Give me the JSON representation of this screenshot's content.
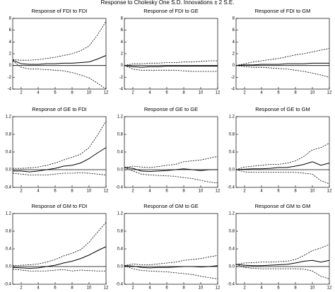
{
  "title": "Response to Cholesky One S.D. Innovations ± 2 S.E.",
  "chart_data": [
    {
      "type": "line",
      "title": "Response of FDI to FDI",
      "x": [
        1,
        2,
        3,
        4,
        5,
        6,
        7,
        8,
        9,
        10,
        11,
        12
      ],
      "xlim": [
        1,
        12
      ],
      "xticks": [
        2,
        4,
        6,
        8,
        10,
        12
      ],
      "ylim": [
        -4,
        8
      ],
      "yticks": [
        -4,
        -2,
        0,
        2,
        4,
        6,
        8
      ],
      "series": [
        {
          "color": "#000",
          "dash": false,
          "values": [
            0.9,
            0.3,
            0.2,
            0.2,
            0.3,
            0.3,
            0.4,
            0.4,
            0.5,
            0.6,
            1.1,
            1.7
          ]
        },
        {
          "color": "#000",
          "dash": true,
          "values": [
            1.0,
            0.9,
            0.9,
            1.0,
            1.2,
            1.4,
            1.7,
            2.0,
            2.5,
            3.3,
            5.2,
            7.5
          ]
        },
        {
          "color": "#000",
          "dash": true,
          "values": [
            0.8,
            -0.3,
            -0.6,
            -0.6,
            -0.7,
            -0.8,
            -0.9,
            -1.2,
            -1.6,
            -2.1,
            -3.0,
            -4.0
          ]
        }
      ]
    },
    {
      "type": "line",
      "title": "Response of FDI to GE",
      "x": [
        1,
        2,
        3,
        4,
        5,
        6,
        7,
        8,
        9,
        10,
        11,
        12
      ],
      "xlim": [
        1,
        12
      ],
      "xticks": [
        2,
        4,
        6,
        8,
        10,
        12
      ],
      "ylim": [
        -4,
        8
      ],
      "yticks": [
        -4,
        -2,
        0,
        2,
        4,
        6,
        8
      ],
      "series": [
        {
          "color": "#000",
          "dash": false,
          "values": [
            0,
            -0.2,
            -0.3,
            -0.2,
            -0.2,
            -0.1,
            -0.1,
            -0.1,
            -0.1,
            -0.1,
            -0.1,
            -0.1
          ]
        },
        {
          "color": "#000",
          "dash": true,
          "values": [
            0,
            0.3,
            0.3,
            0.4,
            0.4,
            0.5,
            0.5,
            0.6,
            0.6,
            0.7,
            0.8,
            0.8
          ]
        },
        {
          "color": "#000",
          "dash": true,
          "values": [
            0,
            -0.6,
            -0.8,
            -0.8,
            -0.8,
            -0.8,
            -0.8,
            -0.9,
            -1.0,
            -1.0,
            -1.0,
            -1.0
          ]
        }
      ]
    },
    {
      "type": "line",
      "title": "Response of FDI to GM",
      "x": [
        1,
        2,
        3,
        4,
        5,
        6,
        7,
        8,
        9,
        10,
        11,
        12
      ],
      "xlim": [
        1,
        12
      ],
      "xticks": [
        2,
        4,
        6,
        8,
        10,
        12
      ],
      "ylim": [
        -4,
        8
      ],
      "yticks": [
        -4,
        -2,
        0,
        2,
        4,
        6,
        8
      ],
      "series": [
        {
          "color": "#000",
          "dash": false,
          "values": [
            0,
            0.1,
            0.1,
            0.2,
            0.2,
            0.2,
            0.3,
            0.3,
            0.3,
            0.4,
            0.4,
            0.4
          ]
        },
        {
          "color": "#000",
          "dash": true,
          "values": [
            0,
            0.3,
            0.6,
            0.8,
            1.0,
            1.2,
            1.5,
            1.8,
            2.0,
            2.3,
            2.6,
            2.9
          ]
        },
        {
          "color": "#000",
          "dash": true,
          "values": [
            0,
            -0.2,
            -0.3,
            -0.3,
            -0.4,
            -0.5,
            -0.6,
            -0.8,
            -1.0,
            -1.3,
            -1.6,
            -2.0
          ]
        }
      ]
    },
    {
      "type": "line",
      "title": "Response of GE to FDI",
      "x": [
        1,
        2,
        3,
        4,
        5,
        6,
        7,
        8,
        9,
        10,
        11,
        12
      ],
      "xlim": [
        1,
        12
      ],
      "xticks": [
        2,
        4,
        6,
        8,
        10,
        12
      ],
      "ylim": [
        -0.4,
        1.2
      ],
      "yticks": [
        -0.4,
        {
          "value": 0,
          "label": "0.0"
        },
        0.4,
        0.8,
        1.2
      ],
      "series": [
        {
          "color": "#000",
          "dash": false,
          "values": [
            -0.03,
            -0.03,
            -0.05,
            -0.03,
            0,
            0.03,
            0.08,
            0.1,
            0.15,
            0.25,
            0.38,
            0.5
          ]
        },
        {
          "color": "#000",
          "dash": true,
          "values": [
            0.03,
            0.03,
            0.04,
            0.06,
            0.1,
            0.15,
            0.22,
            0.28,
            0.35,
            0.5,
            0.78,
            1.1
          ]
        },
        {
          "color": "#000",
          "dash": true,
          "values": [
            -0.08,
            -0.1,
            -0.12,
            -0.12,
            -0.12,
            -0.1,
            -0.08,
            -0.08,
            -0.07,
            -0.08,
            -0.1,
            -0.12
          ]
        }
      ]
    },
    {
      "type": "line",
      "title": "Response of GE to GE",
      "x": [
        1,
        2,
        3,
        4,
        5,
        6,
        7,
        8,
        9,
        10,
        11,
        12
      ],
      "xlim": [
        1,
        12
      ],
      "xticks": [
        2,
        4,
        6,
        8,
        10,
        12
      ],
      "ylim": [
        -0.4,
        1.2
      ],
      "yticks": [
        -0.4,
        {
          "value": 0,
          "label": "0.0"
        },
        0.4,
        0.8,
        1.2
      ],
      "series": [
        {
          "color": "#000",
          "dash": false,
          "values": [
            0.05,
            0.03,
            -0.03,
            -0.04,
            -0.03,
            -0.02,
            0,
            0.02,
            0,
            -0.02,
            0,
            0
          ]
        },
        {
          "color": "#000",
          "dash": true,
          "values": [
            0.05,
            0.08,
            0.06,
            0.05,
            0.07,
            0.1,
            0.12,
            0.18,
            0.2,
            0.22,
            0.26,
            0.3
          ]
        },
        {
          "color": "#000",
          "dash": true,
          "values": [
            0.05,
            -0.03,
            -0.1,
            -0.12,
            -0.13,
            -0.14,
            -0.15,
            -0.18,
            -0.2,
            -0.24,
            -0.28,
            -0.3
          ]
        }
      ]
    },
    {
      "type": "line",
      "title": "Response of GE to GM",
      "x": [
        1,
        2,
        3,
        4,
        5,
        6,
        7,
        8,
        9,
        10,
        11,
        12
      ],
      "xlim": [
        1,
        12
      ],
      "xticks": [
        2,
        4,
        6,
        8,
        10,
        12
      ],
      "ylim": [
        -0.4,
        1.2
      ],
      "yticks": [
        -0.4,
        {
          "value": 0,
          "label": "0.0"
        },
        0.4,
        0.8,
        1.2
      ],
      "series": [
        {
          "color": "#000",
          "dash": false,
          "values": [
            0,
            0.01,
            0.02,
            0.02,
            0.03,
            0.05,
            0.05,
            0.08,
            0.12,
            0.18,
            0.1,
            0.15
          ]
        },
        {
          "color": "#000",
          "dash": true,
          "values": [
            0,
            0.06,
            0.08,
            0.1,
            0.12,
            0.12,
            0.15,
            0.2,
            0.3,
            0.45,
            0.5,
            0.6
          ]
        },
        {
          "color": "#000",
          "dash": true,
          "values": [
            0,
            -0.05,
            -0.06,
            -0.06,
            -0.06,
            -0.06,
            -0.06,
            -0.06,
            -0.08,
            -0.1,
            -0.25,
            -0.32
          ]
        }
      ]
    },
    {
      "type": "line",
      "title": "Response of GM to FDI",
      "x": [
        1,
        2,
        3,
        4,
        5,
        6,
        7,
        8,
        9,
        10,
        11,
        12
      ],
      "xlim": [
        1,
        12
      ],
      "xticks": [
        2,
        4,
        6,
        8,
        10,
        12
      ],
      "ylim": [
        -0.4,
        1.2
      ],
      "yticks": [
        -0.4,
        {
          "value": 0,
          "label": "0.0"
        },
        0.4,
        0.8,
        1.2
      ],
      "series": [
        {
          "color": "#000",
          "dash": false,
          "values": [
            -0.02,
            -0.03,
            -0.04,
            -0.03,
            0,
            0.03,
            0.08,
            0.12,
            0.18,
            0.26,
            0.36,
            0.45
          ]
        },
        {
          "color": "#000",
          "dash": true,
          "values": [
            0.02,
            0.03,
            0.04,
            0.06,
            0.1,
            0.16,
            0.24,
            0.3,
            0.38,
            0.55,
            0.78,
            1.0
          ]
        },
        {
          "color": "#000",
          "dash": true,
          "values": [
            -0.06,
            -0.08,
            -0.1,
            -0.1,
            -0.1,
            -0.08,
            -0.07,
            -0.1,
            -0.08,
            -0.09,
            -0.1,
            -0.1
          ]
        }
      ]
    },
    {
      "type": "line",
      "title": "Response of GM to GE",
      "x": [
        1,
        2,
        3,
        4,
        5,
        6,
        7,
        8,
        9,
        10,
        11,
        12
      ],
      "xlim": [
        1,
        12
      ],
      "xticks": [
        2,
        4,
        6,
        8,
        10,
        12
      ],
      "ylim": [
        -0.4,
        1.2
      ],
      "yticks": [
        -0.4,
        {
          "value": 0,
          "label": "0.0"
        },
        0.4,
        0.8,
        1.2
      ],
      "series": [
        {
          "color": "#000",
          "dash": false,
          "values": [
            0.02,
            0.01,
            -0.02,
            -0.03,
            -0.02,
            -0.02,
            -0.01,
            0,
            0,
            -0.01,
            0,
            0.02
          ]
        },
        {
          "color": "#000",
          "dash": true,
          "values": [
            0.02,
            0.06,
            0.04,
            0.04,
            0.06,
            0.08,
            0.1,
            0.14,
            0.16,
            0.18,
            0.22,
            0.25
          ]
        },
        {
          "color": "#000",
          "dash": true,
          "values": [
            0.02,
            -0.05,
            -0.09,
            -0.1,
            -0.11,
            -0.12,
            -0.14,
            -0.16,
            -0.18,
            -0.22,
            -0.25,
            -0.28
          ]
        }
      ]
    },
    {
      "type": "line",
      "title": "Response of GM to GM",
      "x": [
        1,
        2,
        3,
        4,
        5,
        6,
        7,
        8,
        9,
        10,
        11,
        12
      ],
      "xlim": [
        1,
        12
      ],
      "xticks": [
        2,
        4,
        6,
        8,
        10,
        12
      ],
      "ylim": [
        -0.4,
        1.2
      ],
      "yticks": [
        -0.4,
        {
          "value": 0,
          "label": "0.0"
        },
        0.4,
        0.8,
        1.2
      ],
      "series": [
        {
          "color": "#000",
          "dash": false,
          "values": [
            0.05,
            0.03,
            0.02,
            0.02,
            0.03,
            0.04,
            0.05,
            0.08,
            0.12,
            0.14,
            0.1,
            0.14
          ]
        },
        {
          "color": "#000",
          "dash": true,
          "values": [
            0.05,
            0.08,
            0.09,
            0.1,
            0.1,
            0.11,
            0.12,
            0.16,
            0.25,
            0.36,
            0.42,
            0.5
          ]
        },
        {
          "color": "#000",
          "dash": true,
          "values": [
            0.05,
            -0.02,
            -0.04,
            -0.05,
            -0.05,
            -0.05,
            -0.05,
            -0.05,
            -0.06,
            -0.1,
            -0.22,
            -0.28
          ]
        }
      ]
    }
  ]
}
